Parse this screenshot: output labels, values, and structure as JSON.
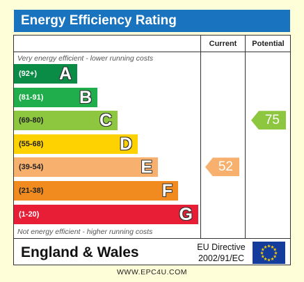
{
  "header": {
    "title": "Energy Efficiency Rating"
  },
  "columns": {
    "current": "Current",
    "potential": "Potential"
  },
  "notes": {
    "top": "Very energy efficient - lower running costs",
    "bottom": "Not energy efficient - higher running costs"
  },
  "chart_data": {
    "type": "bar",
    "title": "Energy Efficiency Rating",
    "categories": [
      "A",
      "B",
      "C",
      "D",
      "E",
      "F",
      "G"
    ],
    "ranges": [
      "(92+)",
      "(81-91)",
      "(69-80)",
      "(55-68)",
      "(39-54)",
      "(21-38)",
      "(1-20)"
    ],
    "colors": [
      "#0a8c47",
      "#1fae4b",
      "#8dc63f",
      "#fed100",
      "#f7b06e",
      "#f18a1f",
      "#e81e37"
    ],
    "range_text_colors": [
      "#ffffff",
      "#ffffff",
      "#222222",
      "#222222",
      "#222222",
      "#222222",
      "#ffffff"
    ],
    "current": {
      "value": 52,
      "band": "E",
      "color": "#f7b06e"
    },
    "potential": {
      "value": 75,
      "band": "C",
      "color": "#8dc63f"
    }
  },
  "footer": {
    "region": "England & Wales",
    "directive_line1": "EU Directive",
    "directive_line2": "2002/91/EC",
    "flag_icon": "eu-flag-icon"
  },
  "website": "WWW.EPC4U.COM"
}
